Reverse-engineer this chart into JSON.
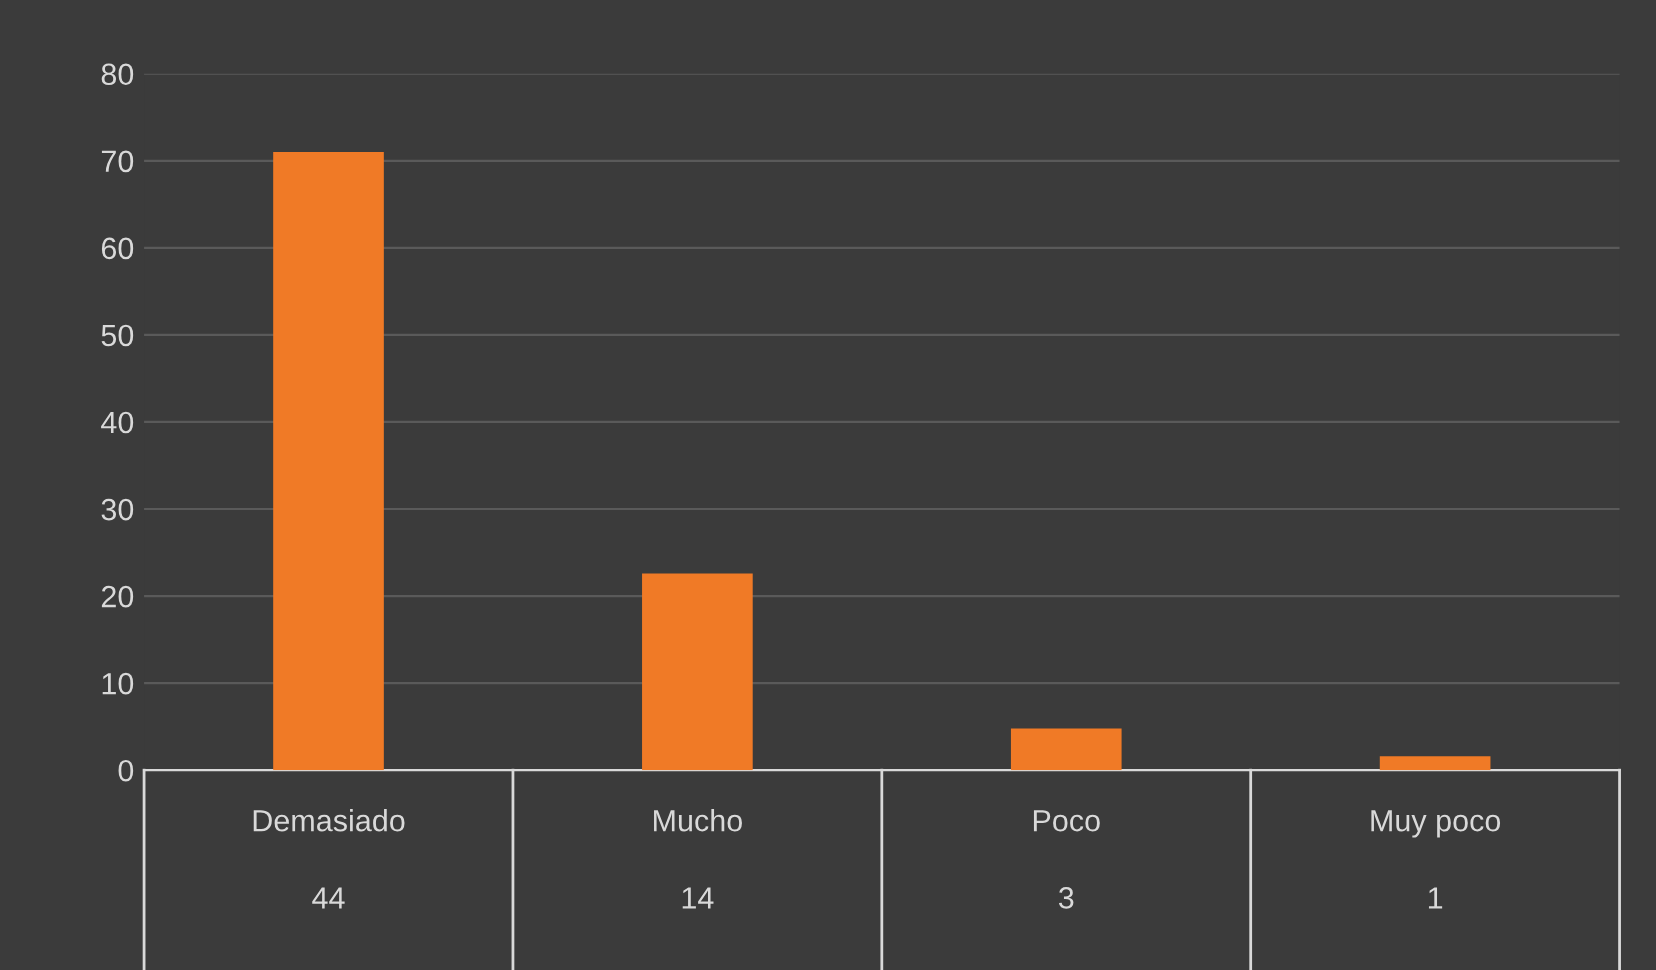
{
  "chart_data": {
    "type": "bar",
    "categories": [
      "Demasiado\n44",
      "Mucho\n14",
      "Poco\n3",
      "Muy poco\n1"
    ],
    "values": [
      71,
      22.6,
      4.8,
      1.6
    ],
    "color": "#f07a26",
    "ylim": [
      0,
      80
    ],
    "yticks": [
      0,
      10,
      20,
      30,
      40,
      50,
      60,
      70,
      80
    ],
    "grid": "y",
    "legend": false
  }
}
